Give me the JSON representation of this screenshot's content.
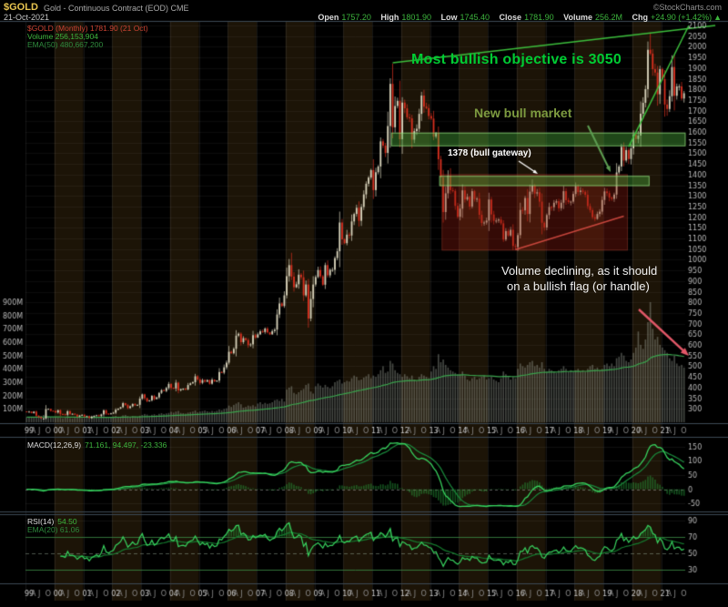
{
  "header": {
    "symbol": "$GOLD",
    "title": "Gold - Continuous Contract (EOD) CME",
    "source": "©StockCharts.com",
    "date": "21-Oct-2021",
    "quote": {
      "open_label": "Open",
      "open": "1757.20",
      "high_label": "High",
      "high": "1801.90",
      "low_label": "Low",
      "low": "1745.40",
      "close_label": "Close",
      "close": "1781.90",
      "volume_label": "Volume",
      "volume": "256.2M",
      "chg_label": "Chg",
      "chg": "+24.90 (+1.42%)",
      "chg_arrow": "▲"
    }
  },
  "legends": {
    "price": "$GOLD (Monthly) 1781.90 (21 Oct)",
    "volume": "Volume 256,153,904",
    "volume_ema": "EMA(50) 480,667,200",
    "macd_label": "MACD(12,26,9)",
    "macd_values": "71.161, 94.497, -23.336",
    "rsi_label": "RSI(14)",
    "rsi_value": "54.50",
    "rsi_ema": "EMA(20) 61.06"
  },
  "annotations": {
    "objective": "Most bullish objective is 3050",
    "new_bull": "New bull market",
    "gateway": "1378 (bull gateway)",
    "volume_note_1": "Volume declining, as it should",
    "volume_note_2": "on a bullish flag (or handle)"
  },
  "chart_data": {
    "type": "candlestick",
    "symbol": "$GOLD",
    "timeframe": "Monthly",
    "period": "Jan 1999 - Oct 2021",
    "last_close": 1781.9,
    "price_axis": {
      "min": 250,
      "max": 2100,
      "tick_interval": 50
    },
    "volume_axis": {
      "max_m": 900,
      "tick_interval_m": 100
    },
    "x_axis": {
      "years": [
        "99",
        "00",
        "01",
        "02",
        "03",
        "04",
        "05",
        "06",
        "07",
        "08",
        "09",
        "10",
        "11",
        "12",
        "13",
        "14",
        "15",
        "16",
        "17",
        "18",
        "19",
        "20",
        "21"
      ],
      "month_ticks": [
        "A",
        "J",
        "O"
      ]
    },
    "monthly_closes": [
      287,
      287,
      280,
      287,
      268,
      261,
      255,
      255,
      299,
      300,
      291,
      290,
      283,
      294,
      276,
      275,
      272,
      289,
      276,
      277,
      273,
      264,
      269,
      272,
      264,
      266,
      257,
      264,
      267,
      270,
      266,
      274,
      293,
      278,
      275,
      279,
      282,
      296,
      301,
      308,
      327,
      318,
      304,
      312,
      323,
      317,
      319,
      348,
      368,
      350,
      336,
      340,
      361,
      346,
      354,
      375,
      388,
      384,
      398,
      417,
      399,
      396,
      423,
      387,
      393,
      395,
      391,
      412,
      420,
      425,
      453,
      438,
      422,
      435,
      428,
      435,
      418,
      437,
      429,
      433,
      473,
      470,
      495,
      517,
      568,
      561,
      582,
      644,
      653,
      613,
      632,
      623,
      599,
      603,
      646,
      635,
      650,
      664,
      661,
      677,
      659,
      650,
      665,
      672,
      743,
      795,
      783,
      833,
      923,
      975,
      921,
      871,
      885,
      930,
      918,
      833,
      884,
      724,
      816,
      884,
      919,
      952,
      922,
      883,
      975,
      927,
      953,
      953,
      1008,
      1040,
      1175,
      1096,
      1078,
      1118,
      1114,
      1180,
      1215,
      1244,
      1183,
      1248,
      1307,
      1357,
      1386,
      1421,
      1327,
      1411,
      1438,
      1556,
      1536,
      1502,
      1628,
      1826,
      1622,
      1722,
      1746,
      1566,
      1738,
      1711,
      1669,
      1664,
      1564,
      1604,
      1615,
      1685,
      1771,
      1719,
      1712,
      1675,
      1663,
      1578,
      1595,
      1472,
      1387,
      1224,
      1312,
      1396,
      1327,
      1323,
      1253,
      1202,
      1240,
      1326,
      1283,
      1295,
      1250,
      1322,
      1285,
      1287,
      1211,
      1173,
      1175,
      1184,
      1283,
      1213,
      1183,
      1184,
      1189,
      1171,
      1095,
      1135,
      1114,
      1141,
      1065,
      1060,
      1116,
      1234,
      1232,
      1290,
      1215,
      1320,
      1349,
      1311,
      1317,
      1273,
      1174,
      1152,
      1210,
      1248,
      1247,
      1268,
      1275,
      1242,
      1268,
      1322,
      1280,
      1271,
      1273,
      1309,
      1345,
      1318,
      1325,
      1319,
      1305,
      1252,
      1233,
      1200,
      1192,
      1215,
      1226,
      1281,
      1321,
      1313,
      1292,
      1286,
      1306,
      1410,
      1438,
      1530,
      1466,
      1515,
      1473,
      1523,
      1589,
      1567,
      1583,
      1686,
      1737,
      1801,
      1986,
      1968,
      1895,
      1879,
      1777,
      1895,
      1848,
      1729,
      1708,
      1768,
      1905,
      1770,
      1814,
      1814,
      1757,
      1781.9
    ],
    "monthly_volumes_m": [
      38,
      35,
      40,
      36,
      42,
      39,
      48,
      55,
      60,
      45,
      40,
      38,
      40,
      36,
      33,
      30,
      34,
      37,
      31,
      29,
      33,
      35,
      38,
      32,
      33,
      36,
      30,
      34,
      38,
      35,
      32,
      36,
      42,
      37,
      33,
      35,
      44,
      48,
      42,
      40,
      52,
      55,
      47,
      42,
      46,
      44,
      41,
      49,
      55,
      62,
      58,
      50,
      56,
      60,
      54,
      63,
      68,
      62,
      66,
      70,
      78,
      72,
      80,
      85,
      70,
      68,
      65,
      72,
      76,
      80,
      88,
      74,
      80,
      84,
      88,
      82,
      78,
      85,
      80,
      86,
      95,
      90,
      100,
      105,
      125,
      115,
      130,
      140,
      150,
      135,
      110,
      115,
      125,
      120,
      128,
      118,
      140,
      150,
      135,
      145,
      138,
      142,
      150,
      165,
      170,
      160,
      175,
      155,
      245,
      260,
      270,
      220,
      210,
      225,
      240,
      250,
      280,
      290,
      230,
      215,
      270,
      290,
      275,
      260,
      280,
      265,
      255,
      270,
      300,
      310,
      320,
      290,
      300,
      310,
      305,
      330,
      350,
      340,
      315,
      320,
      335,
      345,
      360,
      330,
      350,
      340,
      360,
      390,
      420,
      370,
      380,
      460,
      440,
      390,
      370,
      360,
      340,
      360,
      345,
      330,
      350,
      320,
      310,
      340,
      360,
      350,
      340,
      330,
      380,
      420,
      400,
      510,
      450,
      470,
      430,
      410,
      390,
      380,
      370,
      360,
      360,
      380,
      350,
      320,
      310,
      330,
      340,
      320,
      330,
      340,
      350,
      320,
      330,
      340,
      320,
      310,
      300,
      330,
      380,
      360,
      340,
      320,
      340,
      330,
      400,
      440,
      420,
      410,
      430,
      450,
      460,
      420,
      430,
      410,
      450,
      400,
      380,
      400,
      390,
      380,
      370,
      390,
      400,
      420,
      400,
      380,
      390,
      380,
      390,
      400,
      380,
      390,
      380,
      400,
      420,
      430,
      400,
      410,
      390,
      400,
      430,
      440,
      420,
      440,
      420,
      480,
      490,
      520,
      500,
      460,
      450,
      470,
      520,
      560,
      680,
      580,
      550,
      620,
      750,
      900,
      700,
      620,
      640,
      580,
      560,
      540,
      520,
      480,
      460,
      500,
      440,
      420,
      430,
      410
    ],
    "key_extremes": {
      "highs": {
        "2008-03": 1033,
        "2011-09": 1921,
        "2012-10": 1798,
        "2016-07": 1377,
        "2020-08": 2067
      },
      "lows": {
        "1999-08": 252,
        "2008-10": 681,
        "2015-12": 1046,
        "2021-03": 1676
      }
    },
    "overlays": {
      "resistance_band_upper": {
        "start": "2011-09",
        "end": "2021-10",
        "price_low": 1535,
        "price_high": 1595
      },
      "resistance_band_lower": {
        "start": "2013-05",
        "end": "2020-07",
        "price_low": 1348,
        "price_high": 1392
      },
      "base_box": {
        "start": "2013-06",
        "end": "2019-10",
        "price_low": 1045,
        "price_high": 1400
      },
      "trendlines": [
        {
          "start_month": "2011-09",
          "start_price": 1925,
          "end_month": "2022-11",
          "end_price": 2100,
          "color": "green"
        },
        {
          "start_month": "2019-11",
          "start_price": 1530,
          "end_month": "2021-12",
          "end_price": 2100,
          "color": "green"
        },
        {
          "start_month": "2015-12",
          "start_price": 1048,
          "end_month": "2019-09",
          "end_price": 1205,
          "color": "red"
        }
      ]
    },
    "indicators": {
      "macd": {
        "label": "MACD(12,26,9)",
        "axis_ticks": [
          150,
          100,
          50,
          0,
          -50
        ],
        "last": [
          71.161,
          94.497,
          -23.336
        ]
      },
      "rsi": {
        "label": "RSI(14)",
        "axis_ticks": [
          90,
          70,
          50,
          30
        ],
        "overbought": 70,
        "oversold": 30,
        "last": 54.5,
        "ema20_last": 61.06
      }
    },
    "colors": {
      "up_candle": "#d9d4bc",
      "down_candle": "#d8301f",
      "volume_bar": "rgba(168,174,162,0.42)",
      "volume_ema": "#3aa34d",
      "macd_line": "#38d45f",
      "macd_signal": "#1a8a3c",
      "histogram": "rgba(40,160,60,0.5)",
      "rsi_line": "#38d45f",
      "rsi_ema": "#157a2e",
      "band_fill": "rgba(74,170,60,0.42)",
      "band_stroke": "rgba(150,230,130,0.75)",
      "box_fill": "rgba(150,30,18,0.35)",
      "box_stroke": "rgba(210,80,60,0.35)",
      "trendline_green": "#3cbe3c",
      "trendline_red": "rgba(225,80,70,0.85)",
      "arrow_red": "#e25868",
      "arrow_green": "#5d9e52",
      "arrow_white": "#ffffff",
      "annotation_green": "#00cc33",
      "annotation_olive": "#7d9b40",
      "stripe": "rgba(88,62,22,0.32)"
    }
  }
}
